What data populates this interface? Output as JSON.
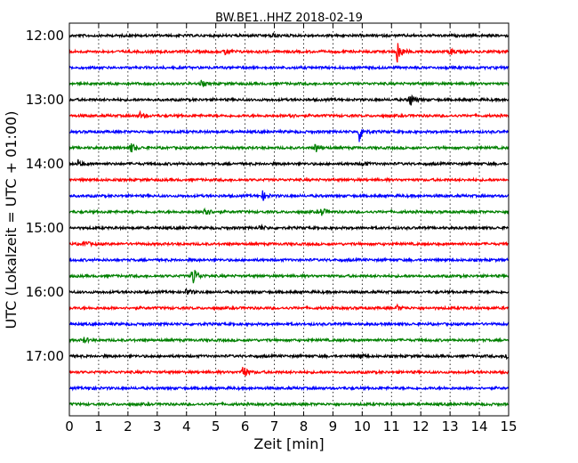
{
  "chart_data": {
    "type": "line",
    "title": "BW.BE1..HHZ 2018-02-19",
    "xlabel": "Zeit  [min]",
    "ylabel": "UTC (Lokalzeit = UTC + 01:00)",
    "xlim": [
      0,
      15
    ],
    "x_ticks": [
      "0",
      "1",
      "2",
      "3",
      "4",
      "5",
      "6",
      "7",
      "8",
      "9",
      "10",
      "11",
      "12",
      "13",
      "14",
      "15"
    ],
    "y_tick_labels": [
      "12:00",
      "13:00",
      "14:00",
      "15:00",
      "16:00",
      "17:00"
    ],
    "grid": "vertical dotted",
    "trace_colors": [
      "#000000",
      "#ff0000",
      "#0000ff",
      "#008000"
    ],
    "trace_count": 24,
    "trace_interval_minutes": 15,
    "events": [
      {
        "trace": 0,
        "minute": 6.9,
        "amplitude": 3
      },
      {
        "trace": 1,
        "minute": 11.2,
        "amplitude": 14
      },
      {
        "trace": 1,
        "minute": 13.0,
        "amplitude": 4
      },
      {
        "trace": 1,
        "minute": 5.3,
        "amplitude": 4
      },
      {
        "trace": 3,
        "minute": 4.5,
        "amplitude": 3
      },
      {
        "trace": 4,
        "minute": 11.6,
        "amplitude": 10
      },
      {
        "trace": 5,
        "minute": 2.4,
        "amplitude": 4
      },
      {
        "trace": 5,
        "minute": 7.5,
        "amplitude": 3
      },
      {
        "trace": 6,
        "minute": 9.9,
        "amplitude": 11
      },
      {
        "trace": 7,
        "minute": 2.1,
        "amplitude": 6
      },
      {
        "trace": 7,
        "minute": 8.4,
        "amplitude": 6
      },
      {
        "trace": 8,
        "minute": 0.3,
        "amplitude": 4
      },
      {
        "trace": 8,
        "minute": 10.0,
        "amplitude": 3
      },
      {
        "trace": 10,
        "minute": 6.6,
        "amplitude": 5
      },
      {
        "trace": 11,
        "minute": 4.6,
        "amplitude": 9
      },
      {
        "trace": 11,
        "minute": 8.6,
        "amplitude": 5
      },
      {
        "trace": 12,
        "minute": 6.5,
        "amplitude": 3
      },
      {
        "trace": 13,
        "minute": 0.5,
        "amplitude": 4
      },
      {
        "trace": 15,
        "minute": 4.2,
        "amplitude": 14
      },
      {
        "trace": 16,
        "minute": 4.0,
        "amplitude": 4
      },
      {
        "trace": 17,
        "minute": 11.2,
        "amplitude": 3
      },
      {
        "trace": 19,
        "minute": 0.5,
        "amplitude": 3
      },
      {
        "trace": 20,
        "minute": 14.9,
        "amplitude": 4
      },
      {
        "trace": 20,
        "minute": 9.9,
        "amplitude": 3
      },
      {
        "trace": 21,
        "minute": 5.9,
        "amplitude": 9
      },
      {
        "trace": 22,
        "minute": 0.7,
        "amplitude": 2
      }
    ]
  }
}
